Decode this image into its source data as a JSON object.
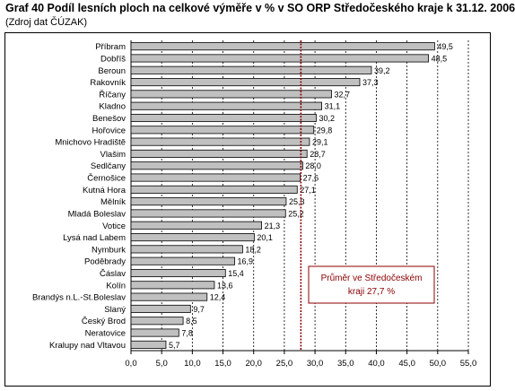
{
  "title": "Graf 40 Podíl lesních ploch na celkové výměře v % v SO ORP Středočeského kraje k 31.12. 2006",
  "subtitle": "(Zdroj dat ČÚZAK)",
  "annotation": {
    "line1": "Průměr ve Středočeském",
    "line2": "kraji 27,7 %"
  },
  "chart_data": {
    "type": "bar",
    "orientation": "horizontal",
    "categories": [
      "Příbram",
      "Dobříš",
      "Beroun",
      "Rakovník",
      "Říčany",
      "Kladno",
      "Benešov",
      "Hořovice",
      "Mnichovo Hradiště",
      "Vlašim",
      "Sedlčany",
      "Černošice",
      "Kutná Hora",
      "Mělník",
      "Mladá Boleslav",
      "Votice",
      "Lysá nad Labem",
      "Nymburk",
      "Poděbrady",
      "Čáslav",
      "Kolín",
      "Brandýs n.L.-St.Boleslav",
      "Slaný",
      "Český Brod",
      "Neratovice",
      "Kralupy nad Vltavou"
    ],
    "values": [
      49.5,
      48.5,
      39.2,
      37.3,
      32.7,
      31.1,
      30.2,
      29.8,
      29.1,
      28.7,
      28.0,
      27.6,
      27.1,
      25.3,
      25.2,
      21.3,
      20.1,
      18.2,
      16.9,
      15.4,
      13.6,
      12.4,
      9.7,
      8.5,
      7.8,
      5.7
    ],
    "value_labels": [
      "49,5",
      "48,5",
      "39,2",
      "37,3",
      "32,7",
      "31,1",
      "30,2",
      "29,8",
      "29,1",
      "28,7",
      "28,0",
      "27,6",
      "27,1",
      "25,3",
      "25,2",
      "21,3",
      "20,1",
      "18,2",
      "16,9",
      "15,4",
      "13,6",
      "12,4",
      "9,7",
      "8,5",
      "7,8",
      "5,7"
    ],
    "xlim": [
      0,
      55
    ],
    "xticks": [
      "0,0",
      "5,0",
      "10,0",
      "15,0",
      "20,0",
      "25,0",
      "30,0",
      "35,0",
      "40,0",
      "45,0",
      "50,0",
      "55,0"
    ],
    "reference_line": 27.7,
    "grid": true,
    "colors": {
      "bar_fill": "#c0c0c0",
      "bar_stroke": "#000000",
      "reference_line": "#8b0000",
      "grid": "#000000"
    }
  }
}
